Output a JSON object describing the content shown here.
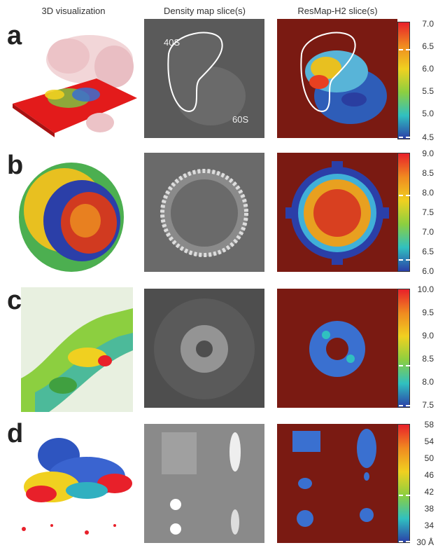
{
  "headers": {
    "col1": "3D visualization",
    "col2": "Density map slice(s)",
    "col3": "ResMap-H2 slice(s)"
  },
  "rows": [
    {
      "letter": "a",
      "overlay_labels": [
        "40S",
        "60S"
      ],
      "colorbar_ticks": [
        "7.0",
        "6.5",
        "6.0",
        "5.5",
        "5.0",
        "4.5"
      ]
    },
    {
      "letter": "b",
      "overlay_labels": [],
      "colorbar_ticks": [
        "9.0",
        "8.5",
        "8.0",
        "7.5",
        "7.0",
        "6.5",
        "6.0"
      ]
    },
    {
      "letter": "c",
      "overlay_labels": [],
      "colorbar_ticks": [
        "10.0",
        "9.5",
        "9.0",
        "8.5",
        "8.0",
        "7.5"
      ]
    },
    {
      "letter": "d",
      "overlay_labels": [],
      "colorbar_ticks": [
        "58",
        "54",
        "50",
        "46",
        "42",
        "38",
        "34",
        "30 Å"
      ]
    }
  ],
  "colors": {
    "background_red": "#7a1a12",
    "scale_top": "#e8202a",
    "scale_bottom": "#2b3fa8"
  }
}
